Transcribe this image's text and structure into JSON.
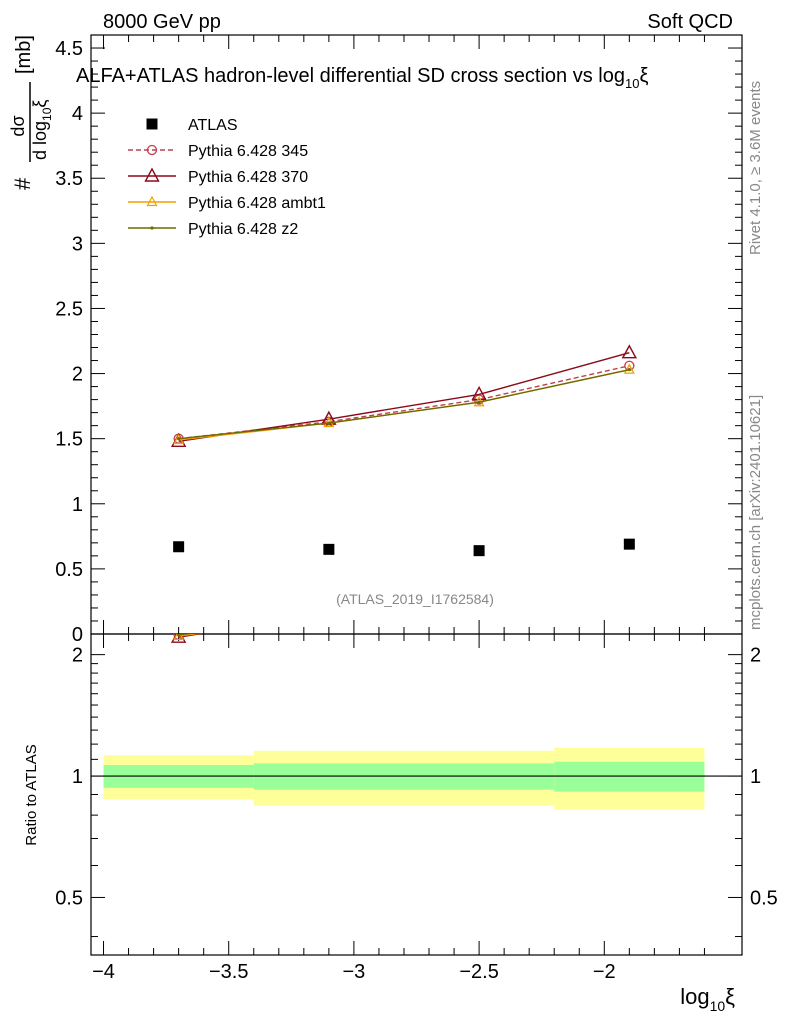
{
  "header": {
    "left": "8000 GeV pp",
    "right": "Soft QCD",
    "title": "ALFA+ATLAS hadron-level differential SD cross section vs log",
    "title_sub": "10",
    "title_xi": "ξ"
  },
  "side_text": {
    "rivet": "Rivet 4.1.0, ≥ 3.6M events",
    "mcplots": "mcplots.cern.ch [arXiv:2401.10621]"
  },
  "watermark": "(ATLAS_2019_I1762584)",
  "colors": {
    "atlas": "#000000",
    "p345": "#c04050",
    "p370": "#8b0a1a",
    "ambt1": "#f0a000",
    "z2": "#6b6b00",
    "band_inner": "#99ff99",
    "band_outer": "#ffff99"
  },
  "chart_data": {
    "type": "scatter",
    "title": "ALFA+ATLAS hadron-level differential SD cross section vs log10 ξ",
    "xlabel": "log",
    "xlabel_sub": "10",
    "xlabel_xi": "ξ",
    "ylabel_num": "dσ",
    "ylabel_den": "d log",
    "ylabel_den_sub": "10",
    "ylabel_den_xi": "ξ",
    "ylabel_hash": "#",
    "ylabel_unit": "[mb]",
    "ratio_ylabel": "Ratio to ATLAS",
    "xlim": [
      -4.05,
      -1.45
    ],
    "ylim": [
      0,
      4.6
    ],
    "ratio_ylim": [
      0.36,
      2.25
    ],
    "x_ticks": [
      -4,
      -3.5,
      -3,
      -2.5,
      -2
    ],
    "x_tick_labels": [
      "−4",
      "−3.5",
      "−3",
      "−2.5",
      "−2"
    ],
    "y_ticks": [
      0,
      0.5,
      1,
      1.5,
      2,
      2.5,
      3,
      3.5,
      4,
      4.5
    ],
    "y_tick_labels": [
      "0",
      "0.5",
      "1",
      "1.5",
      "2",
      "2.5",
      "3",
      "3.5",
      "4",
      "4.5"
    ],
    "ratio_ticks": [
      0.5,
      1,
      2
    ],
    "ratio_tick_labels": [
      "0.5",
      "1",
      "2"
    ],
    "legend": [
      {
        "key": "atlas",
        "label": "ATLAS",
        "marker": "square",
        "line": "none"
      },
      {
        "key": "p345",
        "label": "Pythia 6.428 345",
        "marker": "circle",
        "line": "dashed"
      },
      {
        "key": "p370",
        "label": "Pythia 6.428 370",
        "marker": "triangle",
        "line": "solid"
      },
      {
        "key": "ambt1",
        "label": "Pythia 6.428 ambt1",
        "marker": "triangle-small",
        "line": "solid"
      },
      {
        "key": "z2",
        "label": "Pythia 6.428 z2",
        "marker": "dot",
        "line": "solid"
      }
    ],
    "x": [
      -3.7,
      -3.1,
      -2.5,
      -1.9
    ],
    "bins": [
      [
        -4.0,
        -3.4
      ],
      [
        -3.4,
        -2.8
      ],
      [
        -2.8,
        -2.2
      ],
      [
        -2.2,
        -1.6
      ]
    ],
    "atlas": {
      "name": "ATLAS",
      "values": [
        0.67,
        0.65,
        0.64,
        0.69
      ]
    },
    "series": [
      {
        "key": "p345",
        "name": "Pythia 6.428 345",
        "values": [
          1.5,
          1.63,
          1.8,
          2.06
        ]
      },
      {
        "key": "p370",
        "name": "Pythia 6.428 370",
        "values": [
          1.48,
          1.65,
          1.84,
          2.16
        ]
      },
      {
        "key": "ambt1",
        "name": "Pythia 6.428 ambt1",
        "values": [
          1.49,
          1.62,
          1.78,
          2.03
        ]
      },
      {
        "key": "z2",
        "name": "Pythia 6.428 z2",
        "values": [
          1.5,
          1.62,
          1.78,
          2.03
        ]
      }
    ],
    "ratio_bands": [
      {
        "inner": [
          0.935,
          1.065
        ],
        "outer": [
          0.875,
          1.125
        ]
      },
      {
        "inner": [
          0.925,
          1.075
        ],
        "outer": [
          0.845,
          1.155
        ]
      },
      {
        "inner": [
          0.925,
          1.075
        ],
        "outer": [
          0.845,
          1.155
        ]
      },
      {
        "inner": [
          0.915,
          1.085
        ],
        "outer": [
          0.825,
          1.175
        ]
      }
    ]
  }
}
